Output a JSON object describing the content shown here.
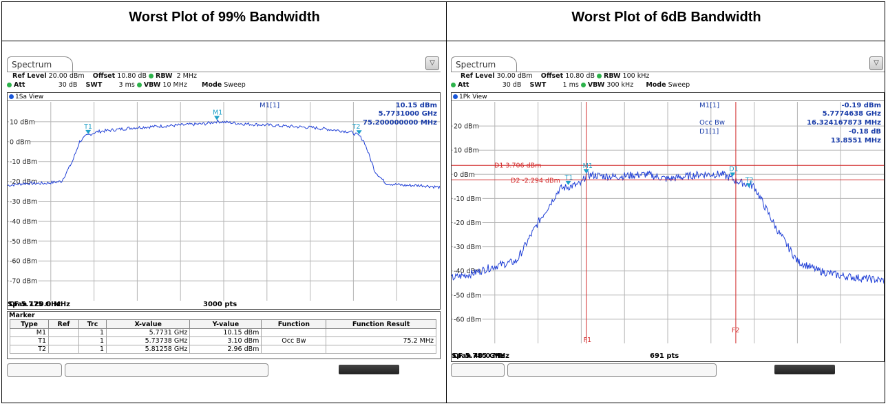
{
  "left": {
    "title": "Worst Plot of 99% Bandwidth",
    "tab": "Spectrum",
    "settings": {
      "ref_level_label": "Ref Level",
      "ref_level": "20.00 dBm",
      "offset_label": "Offset",
      "offset": "10.80 dB",
      "rbw_label": "RBW",
      "rbw": "2 MHz",
      "att_label": "Att",
      "att": "30 dB",
      "swt_label": "SWT",
      "swt": "3 ms",
      "vbw_label": "VBW",
      "vbw": "10 MHz",
      "mode_label": "Mode",
      "mode": "Sweep"
    },
    "view": "1Sa View",
    "readout": {
      "label": "M1[1]",
      "line1": "10.15 dBm",
      "line2": "5.7731000 GHz",
      "line3": "75.200000000 MHz"
    },
    "cf": "CF 5.775 GHz",
    "pts": "3000 pts",
    "span": "Span 120.0 MHz",
    "marker_title": "Marker",
    "marker_headers": [
      "Type",
      "Ref",
      "Trc",
      "X-value",
      "Y-value",
      "Function",
      "Function Result"
    ],
    "marker_rows": [
      [
        "M1",
        "",
        "1",
        "5.7731 GHz",
        "10.15 dBm",
        "",
        ""
      ],
      [
        "T1",
        "",
        "1",
        "5.73738 GHz",
        "3.10 dBm",
        "Occ Bw",
        "75.2 MHz"
      ],
      [
        "T2",
        "",
        "1",
        "5.81258 GHz",
        "2.96 dBm",
        "",
        ""
      ]
    ]
  },
  "right": {
    "title": "Worst Plot of 6dB Bandwidth",
    "tab": "Spectrum",
    "settings": {
      "ref_level_label": "Ref Level",
      "ref_level": "30.00 dBm",
      "offset_label": "Offset",
      "offset": "10.80 dB",
      "rbw_label": "RBW",
      "rbw": "100 kHz",
      "att_label": "Att",
      "att": "30 dB",
      "swt_label": "SWT",
      "swt": "1 ms",
      "vbw_label": "VBW",
      "vbw": "300 kHz",
      "mode_label": "Mode",
      "mode": "Sweep"
    },
    "view": "1Pk View",
    "readout": {
      "label1": "M1[1]",
      "v1": "-0.19 dBm",
      "v2": "5.7774638 GHz",
      "label2": "Occ Bw",
      "v3": "16.324167873 MHz",
      "label3": "D1[1]",
      "v4": "-0.18 dB",
      "v5": "13.8551 MHz"
    },
    "d1_label": "D1 3.706 dBm",
    "d2_label": "D2 -2.294 dBm",
    "f1_label": "F1",
    "f2_label": "F2",
    "cf": "CF 5.785 GHz",
    "pts": "691 pts",
    "span": "Span 40.0 MHz"
  },
  "chart_data": [
    {
      "type": "line",
      "title": "Worst Plot of 99% Bandwidth",
      "ylim": [
        -80,
        20
      ],
      "xlim": [
        5.715,
        5.835
      ],
      "y_ticks": [
        "10 dBm",
        "0 dBm",
        "-10 dBm",
        "-20 dBm",
        "-30 dBm",
        "-40 dBm",
        "-50 dBm",
        "-60 dBm",
        "-70 dBm"
      ],
      "series": [
        {
          "x": [
            5.715,
            5.72,
            5.725,
            5.73,
            5.733,
            5.735,
            5.737,
            5.74,
            5.75,
            5.76,
            5.77,
            5.7731,
            5.78,
            5.79,
            5.8,
            5.81,
            5.8126,
            5.814,
            5.817,
            5.82,
            5.825,
            5.83,
            5.835
          ],
          "values": [
            -22,
            -21,
            -21,
            -20,
            -10,
            0,
            3.1,
            5,
            7,
            8,
            9,
            10.15,
            9,
            8,
            7,
            5,
            2.96,
            0,
            -15,
            -21,
            -22,
            -22,
            -23
          ]
        }
      ],
      "markers": [
        {
          "name": "M1",
          "x": 5.7731,
          "y": 10.15
        },
        {
          "name": "T1",
          "x": 5.73738,
          "y": 3.1
        },
        {
          "name": "T2",
          "x": 5.81258,
          "y": 2.96
        }
      ],
      "grid": true
    },
    {
      "type": "line",
      "title": "Worst Plot of 6dB Bandwidth",
      "ylim": [
        -70,
        30
      ],
      "xlim": [
        5.765,
        5.805
      ],
      "y_ticks": [
        "20 dBm",
        "10 dBm",
        "0 dBm",
        "-10 dBm",
        "-20 dBm",
        "-30 dBm",
        "-40 dBm",
        "-50 dBm",
        "-60 dBm"
      ],
      "series": [
        {
          "x": [
            5.765,
            5.767,
            5.769,
            5.771,
            5.773,
            5.775,
            5.777,
            5.7774638,
            5.78,
            5.783,
            5.785,
            5.788,
            5.79,
            5.7915,
            5.793,
            5.795,
            5.797,
            5.799,
            5.801,
            5.803,
            5.805
          ],
          "values": [
            -43,
            -41,
            -38,
            -36,
            -20,
            -6,
            -4,
            -0.19,
            -1,
            0,
            -2,
            0,
            0,
            -3,
            -5,
            -22,
            -36,
            -40,
            -42,
            -43,
            -44
          ]
        }
      ],
      "lines": [
        {
          "name": "D1",
          "y": 3.706
        },
        {
          "name": "D2",
          "y": -2.294
        }
      ],
      "verticals": [
        {
          "name": "F1",
          "x": 5.7774638
        },
        {
          "name": "F2",
          "x": 5.7913
        }
      ],
      "grid": true
    }
  ]
}
